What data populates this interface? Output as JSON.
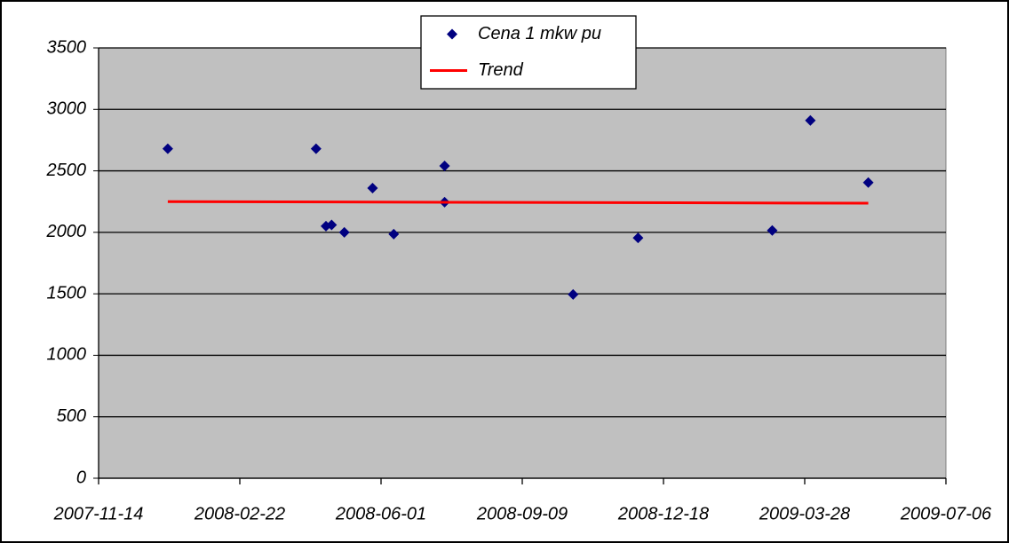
{
  "chart_data": {
    "type": "scatter",
    "series": [
      {
        "name": "Cena 1 mkw pu",
        "color": "#000080",
        "marker": "diamond",
        "x": [
          "2008-01-02",
          "2008-04-16",
          "2008-04-23",
          "2008-04-27",
          "2008-05-06",
          "2008-05-26",
          "2008-06-10",
          "2008-07-16",
          "2008-07-16",
          "2008-10-15",
          "2008-11-30",
          "2009-03-05",
          "2009-04-01",
          "2009-05-12"
        ],
        "values": [
          2680,
          2680,
          2050,
          2060,
          2000,
          2360,
          1985,
          2540,
          2245,
          1495,
          1955,
          2015,
          2910,
          2405
        ]
      },
      {
        "name": "Trend",
        "color": "#ff0000",
        "marker": "line",
        "x": [
          "2008-01-02",
          "2009-05-12"
        ],
        "values": [
          2250,
          2237
        ]
      }
    ],
    "xlim": [
      "2007-11-14",
      "2009-07-06"
    ],
    "xticks": [
      "2007-11-14",
      "2008-02-22",
      "2008-06-01",
      "2008-09-09",
      "2008-12-18",
      "2009-03-28",
      "2009-07-06"
    ],
    "ylim": [
      0,
      3500
    ],
    "yticks": [
      0,
      500,
      1000,
      1500,
      2000,
      2500,
      3000,
      3500
    ],
    "grid": true,
    "legend": "top"
  }
}
